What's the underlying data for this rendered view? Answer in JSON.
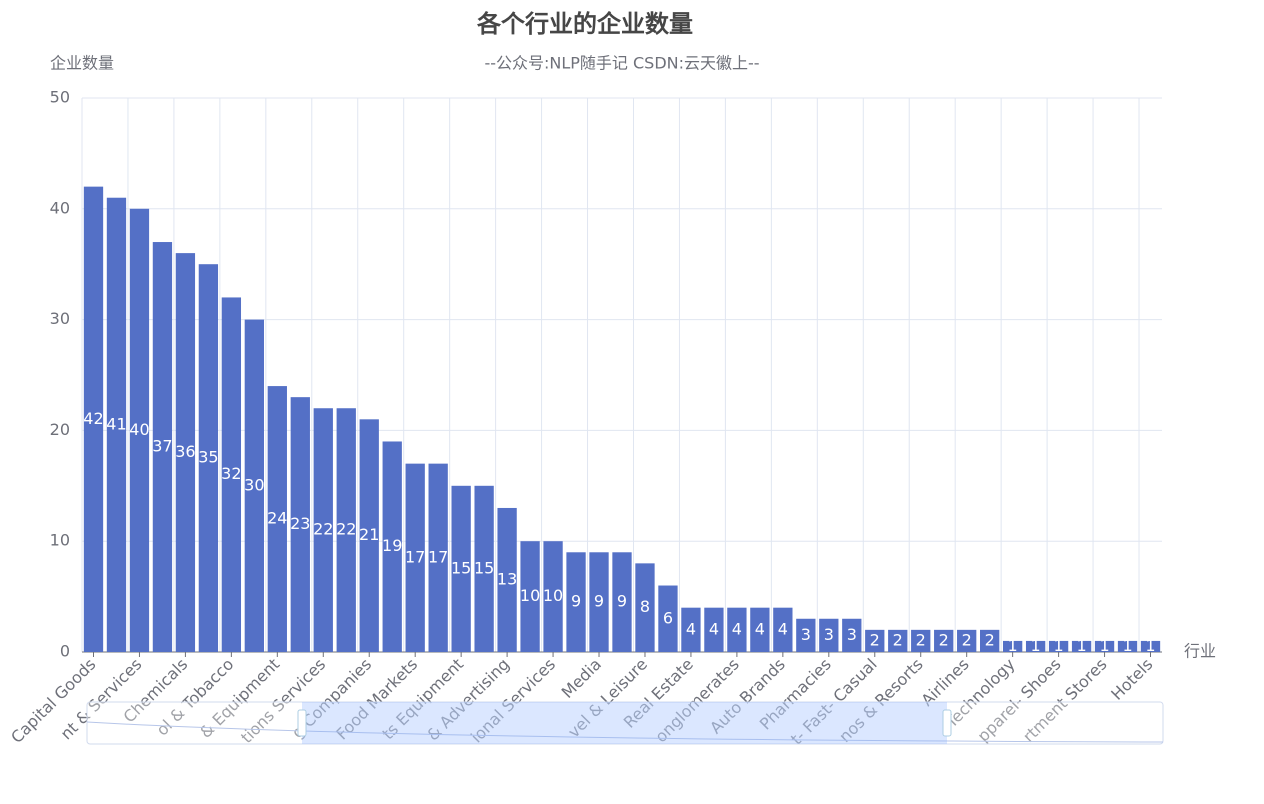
{
  "chart_data": {
    "type": "bar",
    "title": "各个行业的企业数量",
    "subtitle": "--公众号:NLP随手记  CSDN:云天徽上--",
    "y_axis_label": "企业数量",
    "x_axis_label": "行业",
    "color": "#5470c6",
    "categories": [
      "Capital Goods",
      null,
      "nt & Services",
      null,
      "Chemicals",
      null,
      "ol & Tobacco",
      null,
      "& Equipment",
      null,
      "tions Services",
      null,
      "g Companies",
      null,
      "Food Markets",
      null,
      "ts Equipment",
      null,
      "& Advertising",
      null,
      "ional Services",
      null,
      "Media",
      null,
      "vel & Leisure",
      null,
      "Real Estate",
      null,
      "onglomerates",
      null,
      "Auto Brands",
      null,
      "Pharmacies",
      null,
      "t- Fast- Casual",
      null,
      "nos & Resorts",
      null,
      "Airlines",
      null,
      "Technology",
      null,
      "pparel- Shoes",
      null,
      "rtment Stores",
      null,
      "Hotels"
    ],
    "values": [
      42,
      41,
      40,
      37,
      36,
      35,
      32,
      30,
      24,
      23,
      22,
      22,
      21,
      19,
      17,
      17,
      15,
      15,
      13,
      10,
      10,
      9,
      9,
      9,
      8,
      6,
      4,
      4,
      4,
      4,
      4,
      3,
      3,
      3,
      2,
      2,
      2,
      2,
      2,
      2,
      1,
      1,
      1,
      1,
      1,
      1,
      1
    ],
    "ylim": [
      0,
      50
    ],
    "yticks": [
      0,
      10,
      20,
      30,
      40,
      50
    ],
    "grid": true
  }
}
